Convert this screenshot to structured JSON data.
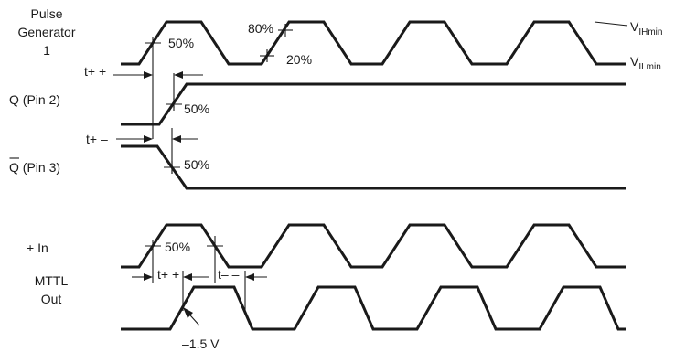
{
  "signals": {
    "pulse_line1": "Pulse",
    "pulse_line2": "Generator",
    "pulse_line3": "1",
    "q": "Q (Pin 2)",
    "qbar_letter": "Q",
    "qbar_rest": " (Pin 3)",
    "plus_in": "+ In",
    "mttl_line1": "MTTL",
    "mttl_line2": "Out"
  },
  "levels": {
    "vih_main": "V",
    "vih_sub": "IHmin",
    "vil_main": "V",
    "vil_sub": "ILmin"
  },
  "annotations": {
    "pct_50_pulse": "50%",
    "pct_80": "80%",
    "pct_20": "20%",
    "pct_50_q": "50%",
    "pct_50_qbar": "50%",
    "pct_50_in": "50%",
    "t_plus_plus_top": "t+ +",
    "t_plus_minus": "t+ –",
    "t_plus_plus_bottom": "t+ +",
    "t_minus_minus": "t– –",
    "threshold": "–1.5 V"
  }
}
